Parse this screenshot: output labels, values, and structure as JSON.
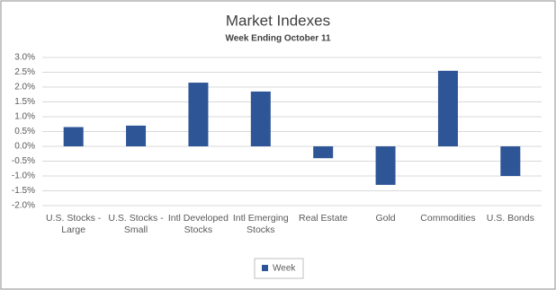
{
  "chart_data": {
    "type": "bar",
    "title": "Market Indexes",
    "subtitle": "Week Ending October 11",
    "categories": [
      "U.S. Stocks - Large",
      "U.S. Stocks - Small",
      "Intl Developed Stocks",
      "Intl Emerging Stocks",
      "Real Estate",
      "Gold",
      "Commodities",
      "U.S. Bonds"
    ],
    "series": [
      {
        "name": "Week",
        "color": "#2e5596",
        "values": [
          0.65,
          0.7,
          2.15,
          1.85,
          -0.4,
          -1.3,
          2.55,
          -1.0
        ]
      }
    ],
    "ylim": [
      -2.0,
      3.0
    ],
    "yticks": [
      {
        "value": -2.0,
        "label": "-2.0%"
      },
      {
        "value": -1.5,
        "label": "-1.5%"
      },
      {
        "value": -1.0,
        "label": "-1.0%"
      },
      {
        "value": -0.5,
        "label": "-0.5%"
      },
      {
        "value": 0.0,
        "label": "0.0%"
      },
      {
        "value": 0.5,
        "label": "0.5%"
      },
      {
        "value": 1.0,
        "label": "1.0%"
      },
      {
        "value": 1.5,
        "label": "1.5%"
      },
      {
        "value": 2.0,
        "label": "2.0%"
      },
      {
        "value": 2.5,
        "label": "2.5%"
      },
      {
        "value": 3.0,
        "label": "3.0%"
      }
    ],
    "grid": true,
    "legend": "bottom"
  }
}
